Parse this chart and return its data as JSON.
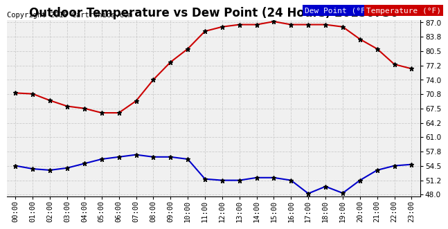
{
  "title": "Outdoor Temperature vs Dew Point (24 Hours) 20150730",
  "copyright": "Copyright 2015 Cartronics.com",
  "x_labels": [
    "00:00",
    "01:00",
    "02:00",
    "03:00",
    "04:00",
    "05:00",
    "06:00",
    "07:00",
    "08:00",
    "09:00",
    "10:00",
    "11:00",
    "12:00",
    "13:00",
    "14:00",
    "15:00",
    "16:00",
    "17:00",
    "18:00",
    "19:00",
    "20:00",
    "21:00",
    "22:00",
    "23:00"
  ],
  "temperature": [
    71.0,
    70.8,
    69.3,
    68.0,
    67.5,
    66.5,
    66.5,
    69.2,
    74.0,
    78.0,
    81.0,
    85.0,
    86.0,
    86.5,
    86.5,
    87.2,
    86.5,
    86.5,
    86.5,
    86.0,
    83.2,
    81.0,
    77.5,
    76.5
  ],
  "dew_point": [
    54.5,
    53.8,
    53.5,
    54.0,
    55.0,
    56.0,
    56.5,
    57.0,
    56.5,
    56.5,
    56.0,
    51.5,
    51.2,
    51.2,
    51.8,
    51.8,
    51.2,
    48.2,
    49.8,
    48.3,
    51.2,
    53.5,
    54.5,
    54.8
  ],
  "temp_color": "#cc0000",
  "dew_color": "#0000cc",
  "marker_color": "black",
  "bg_color": "#ffffff",
  "plot_bg_color": "#f0f0f0",
  "grid_color": "#cccccc",
  "ylim_min": 47.5,
  "ylim_max": 87.5,
  "yticks": [
    48.0,
    51.2,
    54.5,
    57.8,
    61.0,
    64.2,
    67.5,
    70.8,
    74.0,
    77.2,
    80.5,
    83.8,
    87.0
  ],
  "legend_dew_bg": "#0000cc",
  "legend_temp_bg": "#cc0000",
  "legend_text_color": "#ffffff",
  "title_fontsize": 12,
  "copyright_fontsize": 7.5,
  "tick_fontsize": 7.5,
  "legend_fontsize": 8,
  "line_width": 1.5,
  "marker_size": 5
}
